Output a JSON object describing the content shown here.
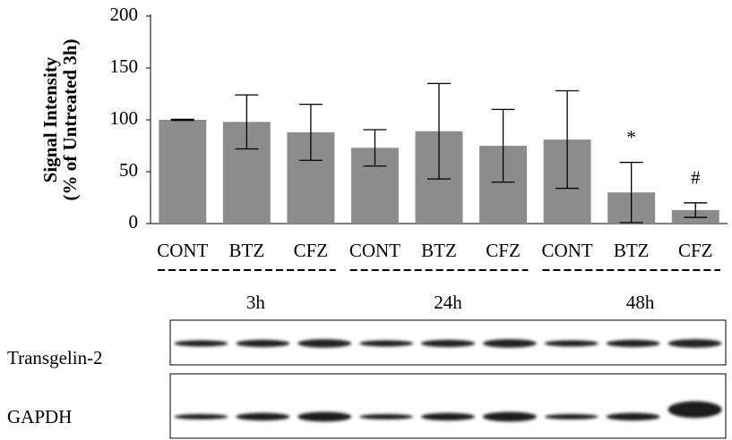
{
  "chart_data": {
    "type": "bar",
    "y_label_lines": [
      "Signal Intensity",
      "(% of Untreated 3h)"
    ],
    "categories": [
      "CONT",
      "BTZ",
      "CFZ",
      "CONT",
      "BTZ",
      "CFZ",
      "CONT",
      "BTZ",
      "CFZ"
    ],
    "values": [
      100,
      98,
      88,
      73,
      89,
      75,
      81,
      30,
      13
    ],
    "errors": [
      0.5,
      26,
      27,
      17.5,
      46,
      35,
      47,
      29,
      7
    ],
    "markers": [
      null,
      null,
      null,
      null,
      null,
      null,
      null,
      "*",
      "#"
    ],
    "groups": [
      "3h",
      "24h",
      "48h"
    ],
    "blots": [
      "Transgelin-2",
      "GAPDH"
    ],
    "color": "#8c8c8c",
    "ylim": [
      0,
      200
    ],
    "yticks": [
      0,
      50,
      100,
      150,
      200
    ],
    "grid": false
  }
}
